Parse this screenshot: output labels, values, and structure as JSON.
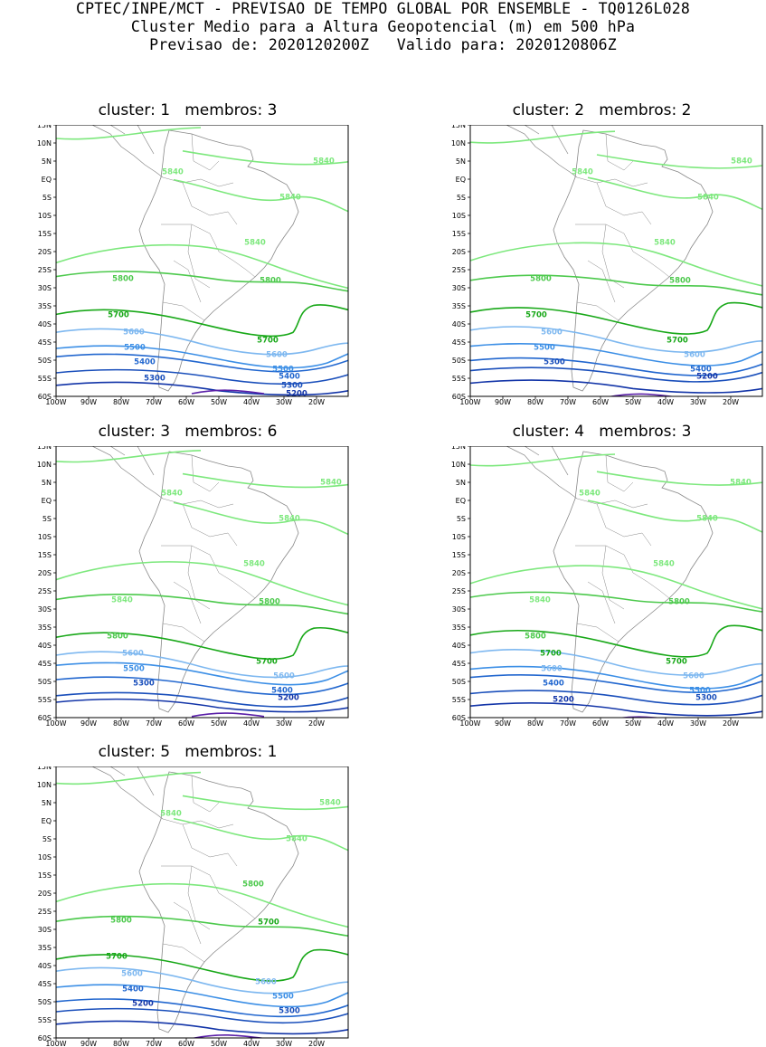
{
  "header": {
    "line1": "CPTEC/INPE/MCT - PREVISAO DE TEMPO GLOBAL POR ENSEMBLE - TQ0126L028",
    "line2": "Cluster Medio para a Altura Geopotencial (m) em 500 hPa",
    "line3": "Previsao de: 2020120200Z   Valido para: 2020120806Z"
  },
  "axes": {
    "lat_labels": [
      "15N",
      "10N",
      "5N",
      "EQ",
      "5S",
      "10S",
      "15S",
      "20S",
      "25S",
      "30S",
      "35S",
      "40S",
      "45S",
      "50S",
      "55S",
      "60S"
    ],
    "lon_labels": [
      "100W",
      "90W",
      "80W",
      "70W",
      "60W",
      "50W",
      "40W",
      "30W",
      "20W"
    ]
  },
  "colors": {
    "c5840": "#7de87d",
    "c5800": "#4cc94c",
    "c5700": "#18a818",
    "c5600": "#7eb8f0",
    "c5500": "#3c8fe6",
    "c5400": "#2267cf",
    "c5300": "#1a4fbb",
    "c5200": "#1335a8",
    "c5100": "#5a1fa8",
    "land": "#888888"
  },
  "panels": [
    {
      "title": "cluster: 1   membros: 3",
      "labels": [
        "5840",
        "5840",
        "5840",
        "5840",
        "5800",
        "5800",
        "5700",
        "5700",
        "5600",
        "5600",
        "5500",
        "5500",
        "5400",
        "5400",
        "5300",
        "5300",
        "5200"
      ]
    },
    {
      "title": "cluster: 2   membros: 2",
      "labels": [
        "5840",
        "5840",
        "5840",
        "5840",
        "5800",
        "5800",
        "5700",
        "5700",
        "5600",
        "5600",
        "5500",
        "5400",
        "5300",
        "5200"
      ]
    },
    {
      "title": "cluster: 3   membros: 6",
      "labels": [
        "5840",
        "5840",
        "5840",
        "5840",
        "5840",
        "5800",
        "5800",
        "5700",
        "5600",
        "5600",
        "5500",
        "5400",
        "5300",
        "5200"
      ]
    },
    {
      "title": "cluster: 4   membros: 3",
      "labels": [
        "5840",
        "5840",
        "5840",
        "5840",
        "5840",
        "5800",
        "5800",
        "5700",
        "5700",
        "5600",
        "5600",
        "5500",
        "5400",
        "5300",
        "5200"
      ]
    },
    {
      "title": "cluster: 5   membros: 1",
      "labels": [
        "5840",
        "5840",
        "5840",
        "5800",
        "5800",
        "5700",
        "5700",
        "5600",
        "5600",
        "5500",
        "5400",
        "5300",
        "5200"
      ]
    }
  ]
}
